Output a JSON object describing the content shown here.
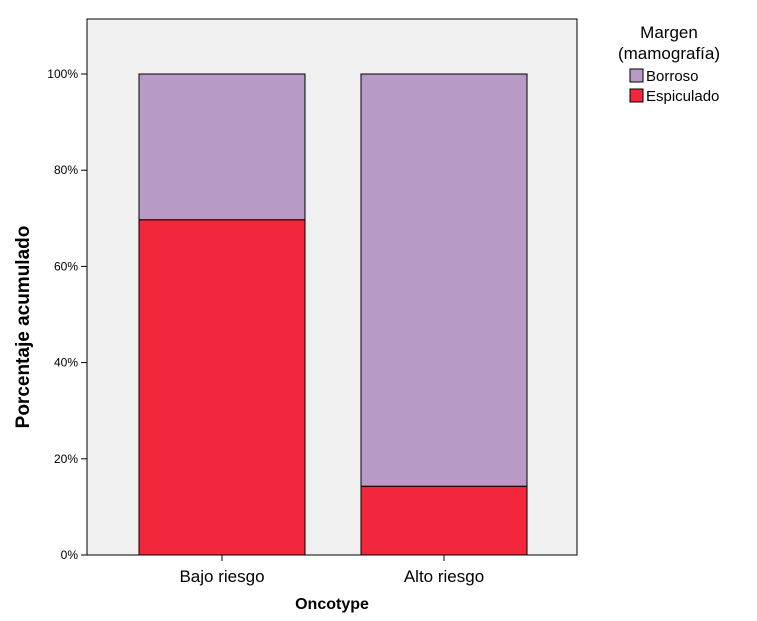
{
  "chart_data": {
    "type": "bar",
    "stacked": true,
    "categories": [
      "Bajo riesgo",
      "Alto riesgo"
    ],
    "series": [
      {
        "name": "Espiculado",
        "color": "#f2273c",
        "values": [
          69.7,
          14.3
        ]
      },
      {
        "name": "Borroso",
        "color": "#b79ac6",
        "values": [
          30.3,
          85.7
        ]
      }
    ],
    "ylim": [
      0,
      100
    ],
    "ytick_values": [
      0,
      20,
      40,
      60,
      80,
      100
    ],
    "ytick_labels": [
      "0%",
      "20%",
      "40%",
      "60%",
      "80%",
      "100%"
    ],
    "xlabel": "Oncotype",
    "ylabel": "Porcentaje acumulado",
    "legend": {
      "title_lines": [
        "Margen",
        "(mamografía)"
      ],
      "entries": [
        "Borroso",
        "Espiculado"
      ],
      "placement": "right"
    },
    "plot_background": "#f0f0f0",
    "grid": false
  }
}
